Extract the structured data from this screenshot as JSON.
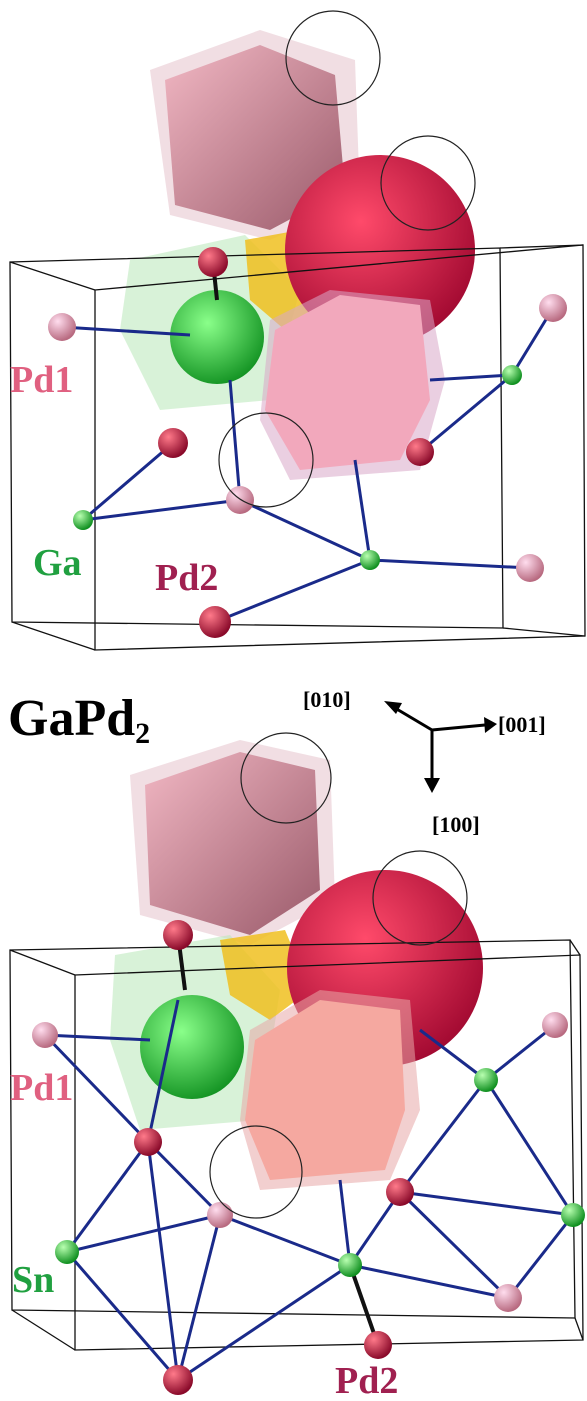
{
  "top_panel": {
    "labels": [
      "Pd1",
      "Ga",
      "Pd2"
    ]
  },
  "title": {
    "formula": "GaPd",
    "subscript": "2"
  },
  "axes": {
    "labels": [
      "[010]",
      "[001]",
      "[100]"
    ]
  },
  "bottom_panel": {
    "labels": [
      "Pd1",
      "Sn",
      "Pd2"
    ]
  }
}
